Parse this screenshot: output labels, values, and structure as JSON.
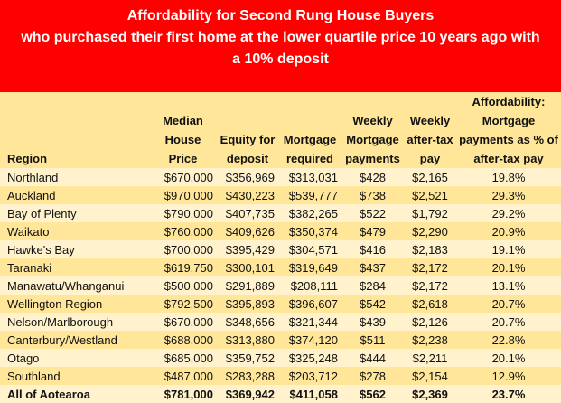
{
  "title": {
    "line1": "Affordability for Second Rung House Buyers",
    "line2": "who purchased their first home at the lower quartile price 10 years ago with",
    "line3": "a 10% deposit"
  },
  "headers": {
    "region": "Region",
    "median": "Median House Price",
    "equity": "Equity for deposit",
    "mortgage": "Mortgage required",
    "weekly": "Weekly Mortgage payments",
    "pay": "Weekly after-tax pay",
    "afford": "Affordability: Mortgage payments as % of after-tax pay"
  },
  "rows": [
    {
      "region": "Northland",
      "median": "$670,000",
      "equity": "$356,969",
      "mortgage": "$313,031",
      "weekly": "$428",
      "pay": "$2,165",
      "afford": "19.8%"
    },
    {
      "region": "Auckland",
      "median": "$970,000",
      "equity": "$430,223",
      "mortgage": "$539,777",
      "weekly": "$738",
      "pay": "$2,521",
      "afford": "29.3%"
    },
    {
      "region": "Bay of Plenty",
      "median": "$790,000",
      "equity": "$407,735",
      "mortgage": "$382,265",
      "weekly": "$522",
      "pay": "$1,792",
      "afford": "29.2%"
    },
    {
      "region": "Waikato",
      "median": "$760,000",
      "equity": "$409,626",
      "mortgage": "$350,374",
      "weekly": "$479",
      "pay": "$2,290",
      "afford": "20.9%"
    },
    {
      "region": "Hawke's Bay",
      "median": "$700,000",
      "equity": "$395,429",
      "mortgage": "$304,571",
      "weekly": "$416",
      "pay": "$2,183",
      "afford": "19.1%"
    },
    {
      "region": "Taranaki",
      "median": "$619,750",
      "equity": "$300,101",
      "mortgage": "$319,649",
      "weekly": "$437",
      "pay": "$2,172",
      "afford": "20.1%"
    },
    {
      "region": "Manawatu/Whanganui",
      "median": "$500,000",
      "equity": "$291,889",
      "mortgage": "$208,111",
      "weekly": "$284",
      "pay": "$2,172",
      "afford": "13.1%"
    },
    {
      "region": "Wellington Region",
      "median": "$792,500",
      "equity": "$395,893",
      "mortgage": "$396,607",
      "weekly": "$542",
      "pay": "$2,618",
      "afford": "20.7%"
    },
    {
      "region": "Nelson/Marlborough",
      "median": "$670,000",
      "equity": "$348,656",
      "mortgage": "$321,344",
      "weekly": "$439",
      "pay": "$2,126",
      "afford": "20.7%"
    },
    {
      "region": "Canterbury/Westland",
      "median": "$688,000",
      "equity": "$313,880",
      "mortgage": "$374,120",
      "weekly": "$511",
      "pay": "$2,238",
      "afford": "22.8%"
    },
    {
      "region": "Otago",
      "median": "$685,000",
      "equity": "$359,752",
      "mortgage": "$325,248",
      "weekly": "$444",
      "pay": "$2,211",
      "afford": "20.1%"
    },
    {
      "region": "Southland",
      "median": "$487,000",
      "equity": "$283,288",
      "mortgage": "$203,712",
      "weekly": "$278",
      "pay": "$2,154",
      "afford": "12.9%"
    },
    {
      "region": "All of Aotearoa",
      "median": "$781,000",
      "equity": "$369,942",
      "mortgage": "$411,058",
      "weekly": "$562",
      "pay": "$2,369",
      "afford": "23.7%"
    }
  ]
}
